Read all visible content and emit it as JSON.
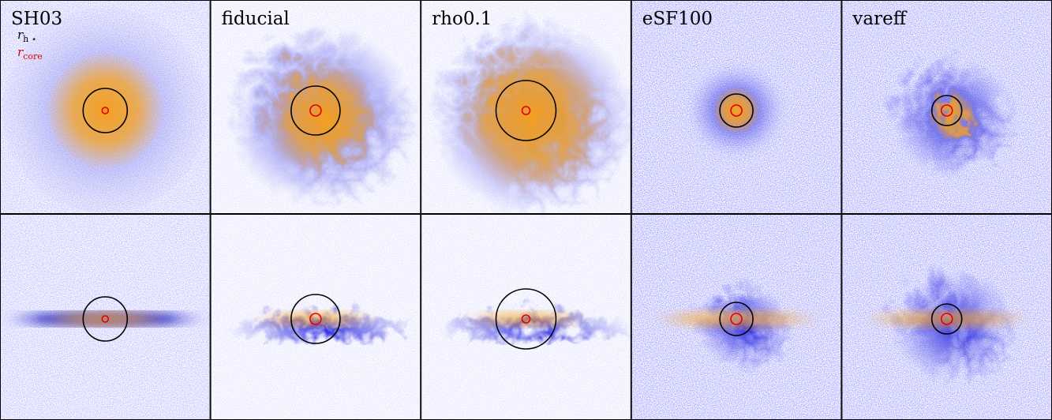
{
  "panels": [
    {
      "label": "SH03"
    },
    {
      "label": "fiducial"
    },
    {
      "label": "rho0.1"
    },
    {
      "label": "eSF100"
    },
    {
      "label": "vareff"
    }
  ],
  "legend": [
    {
      "symbol": "r",
      "subscript": "h ⋆",
      "color": "#000000"
    },
    {
      "symbol": "r",
      "subscript": "core",
      "color": "#e00000"
    }
  ]
}
